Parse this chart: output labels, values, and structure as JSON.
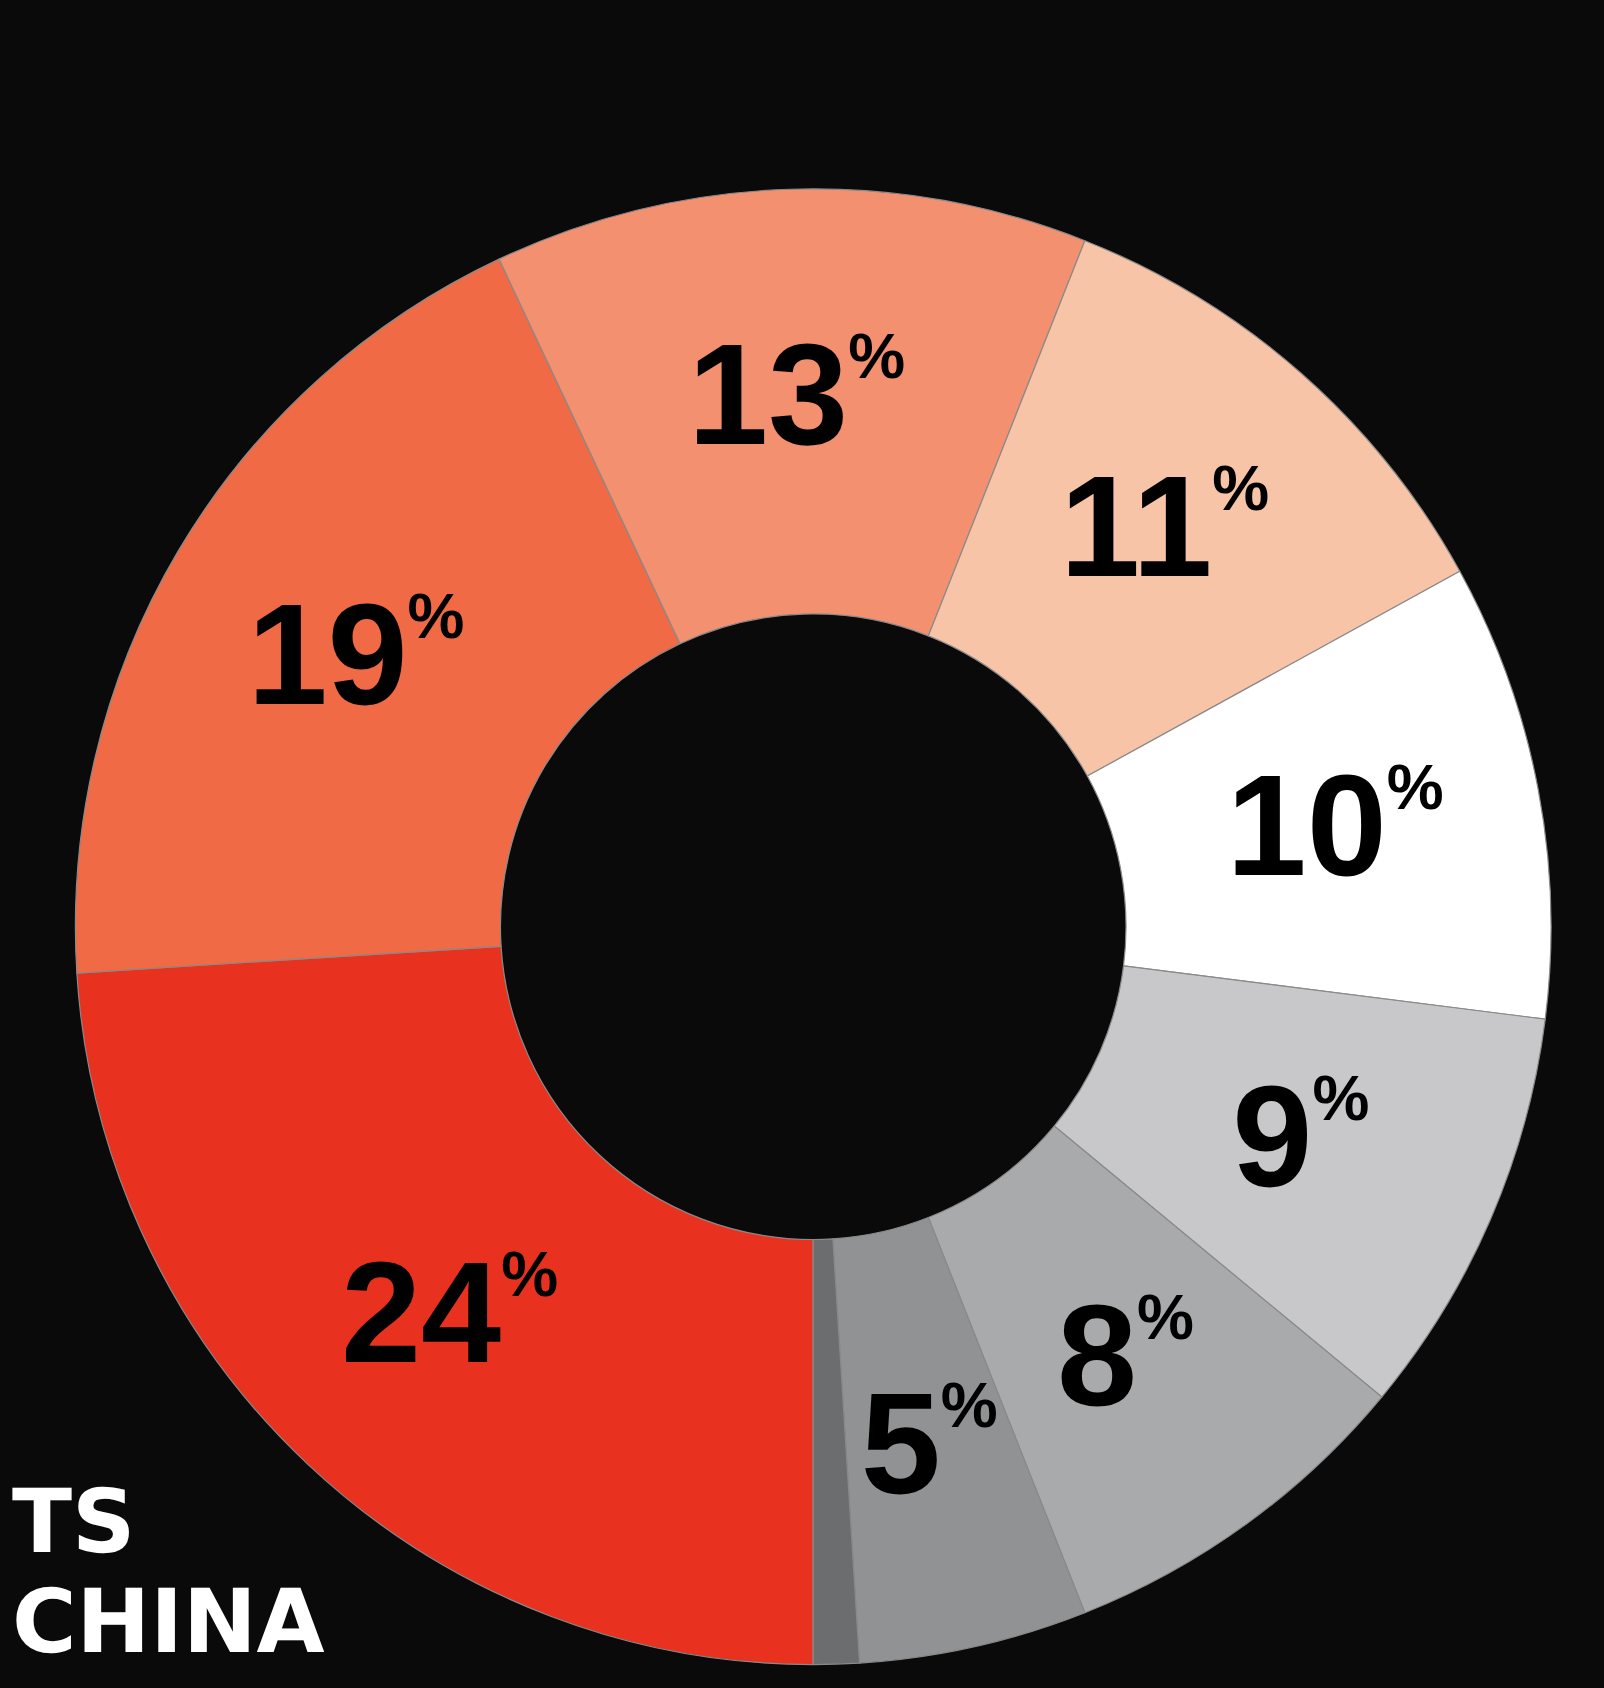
{
  "chart_data": {
    "type": "donut",
    "categories": [
      null,
      null,
      null,
      null,
      null,
      null,
      null,
      null,
      null
    ],
    "values": [
      24,
      19,
      13,
      11,
      10,
      9,
      8,
      5,
      1
    ],
    "colors": [
      "#e8321f",
      "#ef6a45",
      "#f29070",
      "#f7c4a8",
      "#ffffff",
      "#c8c8ca",
      "#a9aaac",
      "#909294",
      "#6c6d6f"
    ],
    "value_labels": [
      "24%",
      "19%",
      "13%",
      "11%",
      "10%",
      "9%",
      "8%",
      "5%",
      null
    ],
    "annotations": [
      "TS",
      "CHINA"
    ]
  }
}
